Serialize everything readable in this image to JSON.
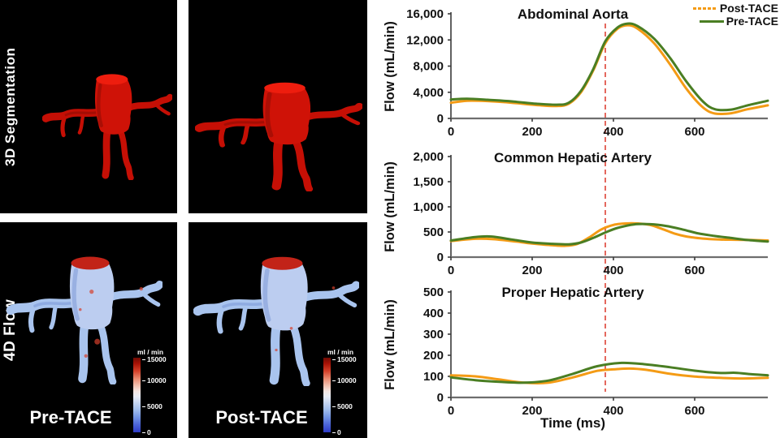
{
  "left_panels": {
    "row_labels": [
      {
        "label": "3D Segmentation"
      },
      {
        "label": "4D Flow"
      }
    ],
    "condition_labels": [
      {
        "label": "Pre-TACE"
      },
      {
        "label": "Post-TACE"
      }
    ],
    "colorbar": {
      "title": "ml / min",
      "ticks": [
        "15000",
        "10000",
        "5000",
        "0"
      ],
      "top_color": "#6f0a02",
      "mid_color": "#f0eef2",
      "bottom_color": "#2d3bc8"
    },
    "segmentation_color": "#cc1106",
    "flow_vessel_color": "#b9cdf0"
  },
  "charts_panel": {
    "ylabel": "Flow (mL/min)",
    "xlabel": "Time (ms)",
    "legend": [
      {
        "label": "Post-TACE",
        "color": "#F49B15",
        "style": "dashed"
      },
      {
        "label": "Pre-TACE",
        "color": "#4A7E23",
        "style": "solid"
      }
    ],
    "marker_line": {
      "x_ms": 380,
      "color": "#E2574C",
      "style": "dashed"
    }
  },
  "chart_data": [
    {
      "type": "line",
      "title": "Abdominal Aorta",
      "ylabel": "Flow (mL/min)",
      "xlabel": "",
      "xlim": [
        0,
        780
      ],
      "ylim": [
        0,
        16000
      ],
      "xticks": [
        0,
        200,
        400,
        600
      ],
      "yticks": [
        0,
        4000,
        8000,
        12000,
        16000
      ],
      "ytick_labels": [
        "0",
        "4,000",
        "8,000",
        "12,000",
        "16,000"
      ],
      "grid": false,
      "legend_position": "top-right",
      "annotation": "vertical dashed marker at 380 ms",
      "series": [
        {
          "name": "Post-TACE",
          "color": "#F49B15",
          "x": [
            0,
            40,
            90,
            150,
            210,
            260,
            290,
            320,
            350,
            380,
            410,
            435,
            460,
            500,
            540,
            580,
            620,
            650,
            690,
            730,
            780
          ],
          "y": [
            2400,
            2700,
            2650,
            2400,
            2050,
            1900,
            2250,
            4000,
            7300,
            11500,
            13700,
            14250,
            13700,
            11500,
            8200,
            4500,
            1700,
            750,
            800,
            1400,
            2000
          ]
        },
        {
          "name": "Pre-TACE",
          "color": "#4A7E23",
          "x": [
            0,
            40,
            90,
            150,
            210,
            260,
            290,
            320,
            350,
            380,
            410,
            435,
            460,
            500,
            540,
            580,
            620,
            650,
            690,
            730,
            780
          ],
          "y": [
            2900,
            3000,
            2850,
            2600,
            2250,
            2100,
            2400,
            4200,
            7500,
            11800,
            13900,
            14500,
            14100,
            12200,
            9200,
            5600,
            2600,
            1400,
            1350,
            2000,
            2700
          ]
        }
      ]
    },
    {
      "type": "line",
      "title": "Common Hepatic Artery",
      "ylabel": "Flow (mL/min)",
      "xlabel": "",
      "xlim": [
        0,
        780
      ],
      "ylim": [
        0,
        2000
      ],
      "xticks": [
        0,
        200,
        400,
        600
      ],
      "yticks": [
        0,
        500,
        1000,
        1500,
        2000
      ],
      "ytick_labels": [
        "0",
        "500",
        "1,000",
        "1,500",
        "2,000"
      ],
      "grid": false,
      "annotation": "vertical dashed marker at 380 ms",
      "series": [
        {
          "name": "Post-TACE",
          "color": "#F49B15",
          "x": [
            0,
            60,
            100,
            150,
            200,
            250,
            280,
            310,
            340,
            370,
            400,
            430,
            460,
            490,
            520,
            550,
            580,
            620,
            660,
            700,
            740,
            780
          ],
          "y": [
            320,
            365,
            360,
            320,
            270,
            235,
            225,
            260,
            390,
            550,
            640,
            670,
            670,
            640,
            560,
            470,
            410,
            370,
            350,
            345,
            340,
            330
          ]
        },
        {
          "name": "Pre-TACE",
          "color": "#4A7E23",
          "x": [
            0,
            60,
            100,
            150,
            200,
            250,
            290,
            320,
            350,
            380,
            410,
            450,
            490,
            530,
            570,
            610,
            650,
            690,
            730,
            780
          ],
          "y": [
            330,
            400,
            410,
            350,
            290,
            265,
            255,
            290,
            380,
            490,
            580,
            650,
            655,
            620,
            550,
            470,
            420,
            380,
            340,
            310
          ]
        }
      ]
    },
    {
      "type": "line",
      "title": "Proper Hepatic Artery",
      "ylabel": "Flow (mL/min)",
      "xlabel": "Time (ms)",
      "xlim": [
        0,
        780
      ],
      "ylim": [
        0,
        500
      ],
      "xticks": [
        0,
        200,
        400,
        600
      ],
      "yticks": [
        0,
        100,
        200,
        300,
        400,
        500
      ],
      "ytick_labels": [
        "0",
        "100",
        "200",
        "300",
        "400",
        "500"
      ],
      "grid": false,
      "annotation": "vertical dashed marker at 380 ms",
      "series": [
        {
          "name": "Post-TACE",
          "color": "#F49B15",
          "x": [
            0,
            60,
            120,
            180,
            240,
            300,
            360,
            400,
            440,
            480,
            540,
            600,
            660,
            720,
            780
          ],
          "y": [
            105,
            100,
            85,
            70,
            70,
            95,
            126,
            133,
            137,
            131,
            112,
            99,
            93,
            90,
            93
          ]
        },
        {
          "name": "Pre-TACE",
          "color": "#4A7E23",
          "x": [
            0,
            60,
            120,
            180,
            240,
            300,
            360,
            420,
            480,
            540,
            600,
            660,
            700,
            740,
            780
          ],
          "y": [
            95,
            82,
            74,
            70,
            80,
            112,
            148,
            164,
            157,
            143,
            127,
            116,
            117,
            110,
            105
          ]
        }
      ]
    }
  ]
}
